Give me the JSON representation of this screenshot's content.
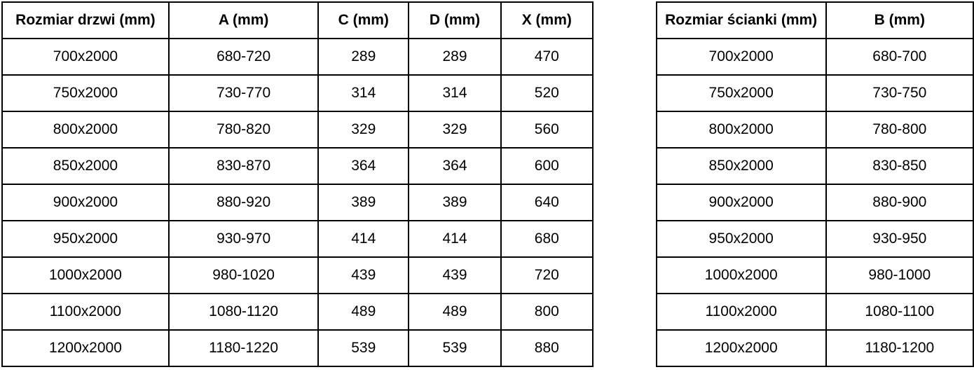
{
  "page": {
    "background_color": "#ffffff",
    "text_color": "#000000",
    "border_color": "#000000"
  },
  "chart_data": [
    {
      "type": "table",
      "columns": [
        "Rozmiar drzwi (mm)",
        "A (mm)",
        "C (mm)",
        "D (mm)",
        "X (mm)"
      ],
      "rows": [
        [
          "700x2000",
          "680-720",
          "289",
          "289",
          "470"
        ],
        [
          "750x2000",
          "730-770",
          "314",
          "314",
          "520"
        ],
        [
          "800x2000",
          "780-820",
          "329",
          "329",
          "560"
        ],
        [
          "850x2000",
          "830-870",
          "364",
          "364",
          "600"
        ],
        [
          "900x2000",
          "880-920",
          "389",
          "389",
          "640"
        ],
        [
          "950x2000",
          "930-970",
          "414",
          "414",
          "680"
        ],
        [
          "1000x2000",
          "980-1020",
          "439",
          "439",
          "720"
        ],
        [
          "1100x2000",
          "1080-1120",
          "489",
          "489",
          "800"
        ],
        [
          "1200x2000",
          "1180-1220",
          "539",
          "539",
          "880"
        ]
      ],
      "layout": {
        "grid": true,
        "header_bold": true,
        "text_align": "center"
      }
    },
    {
      "type": "table",
      "columns": [
        "Rozmiar ścianki (mm)",
        "B (mm)"
      ],
      "rows": [
        [
          "700x2000",
          "680-700"
        ],
        [
          "750x2000",
          "730-750"
        ],
        [
          "800x2000",
          "780-800"
        ],
        [
          "850x2000",
          "830-850"
        ],
        [
          "900x2000",
          "880-900"
        ],
        [
          "950x2000",
          "930-950"
        ],
        [
          "1000x2000",
          "980-1000"
        ],
        [
          "1100x2000",
          "1080-1100"
        ],
        [
          "1200x2000",
          "1180-1200"
        ]
      ],
      "layout": {
        "grid": true,
        "header_bold": true,
        "text_align": "center"
      }
    }
  ]
}
